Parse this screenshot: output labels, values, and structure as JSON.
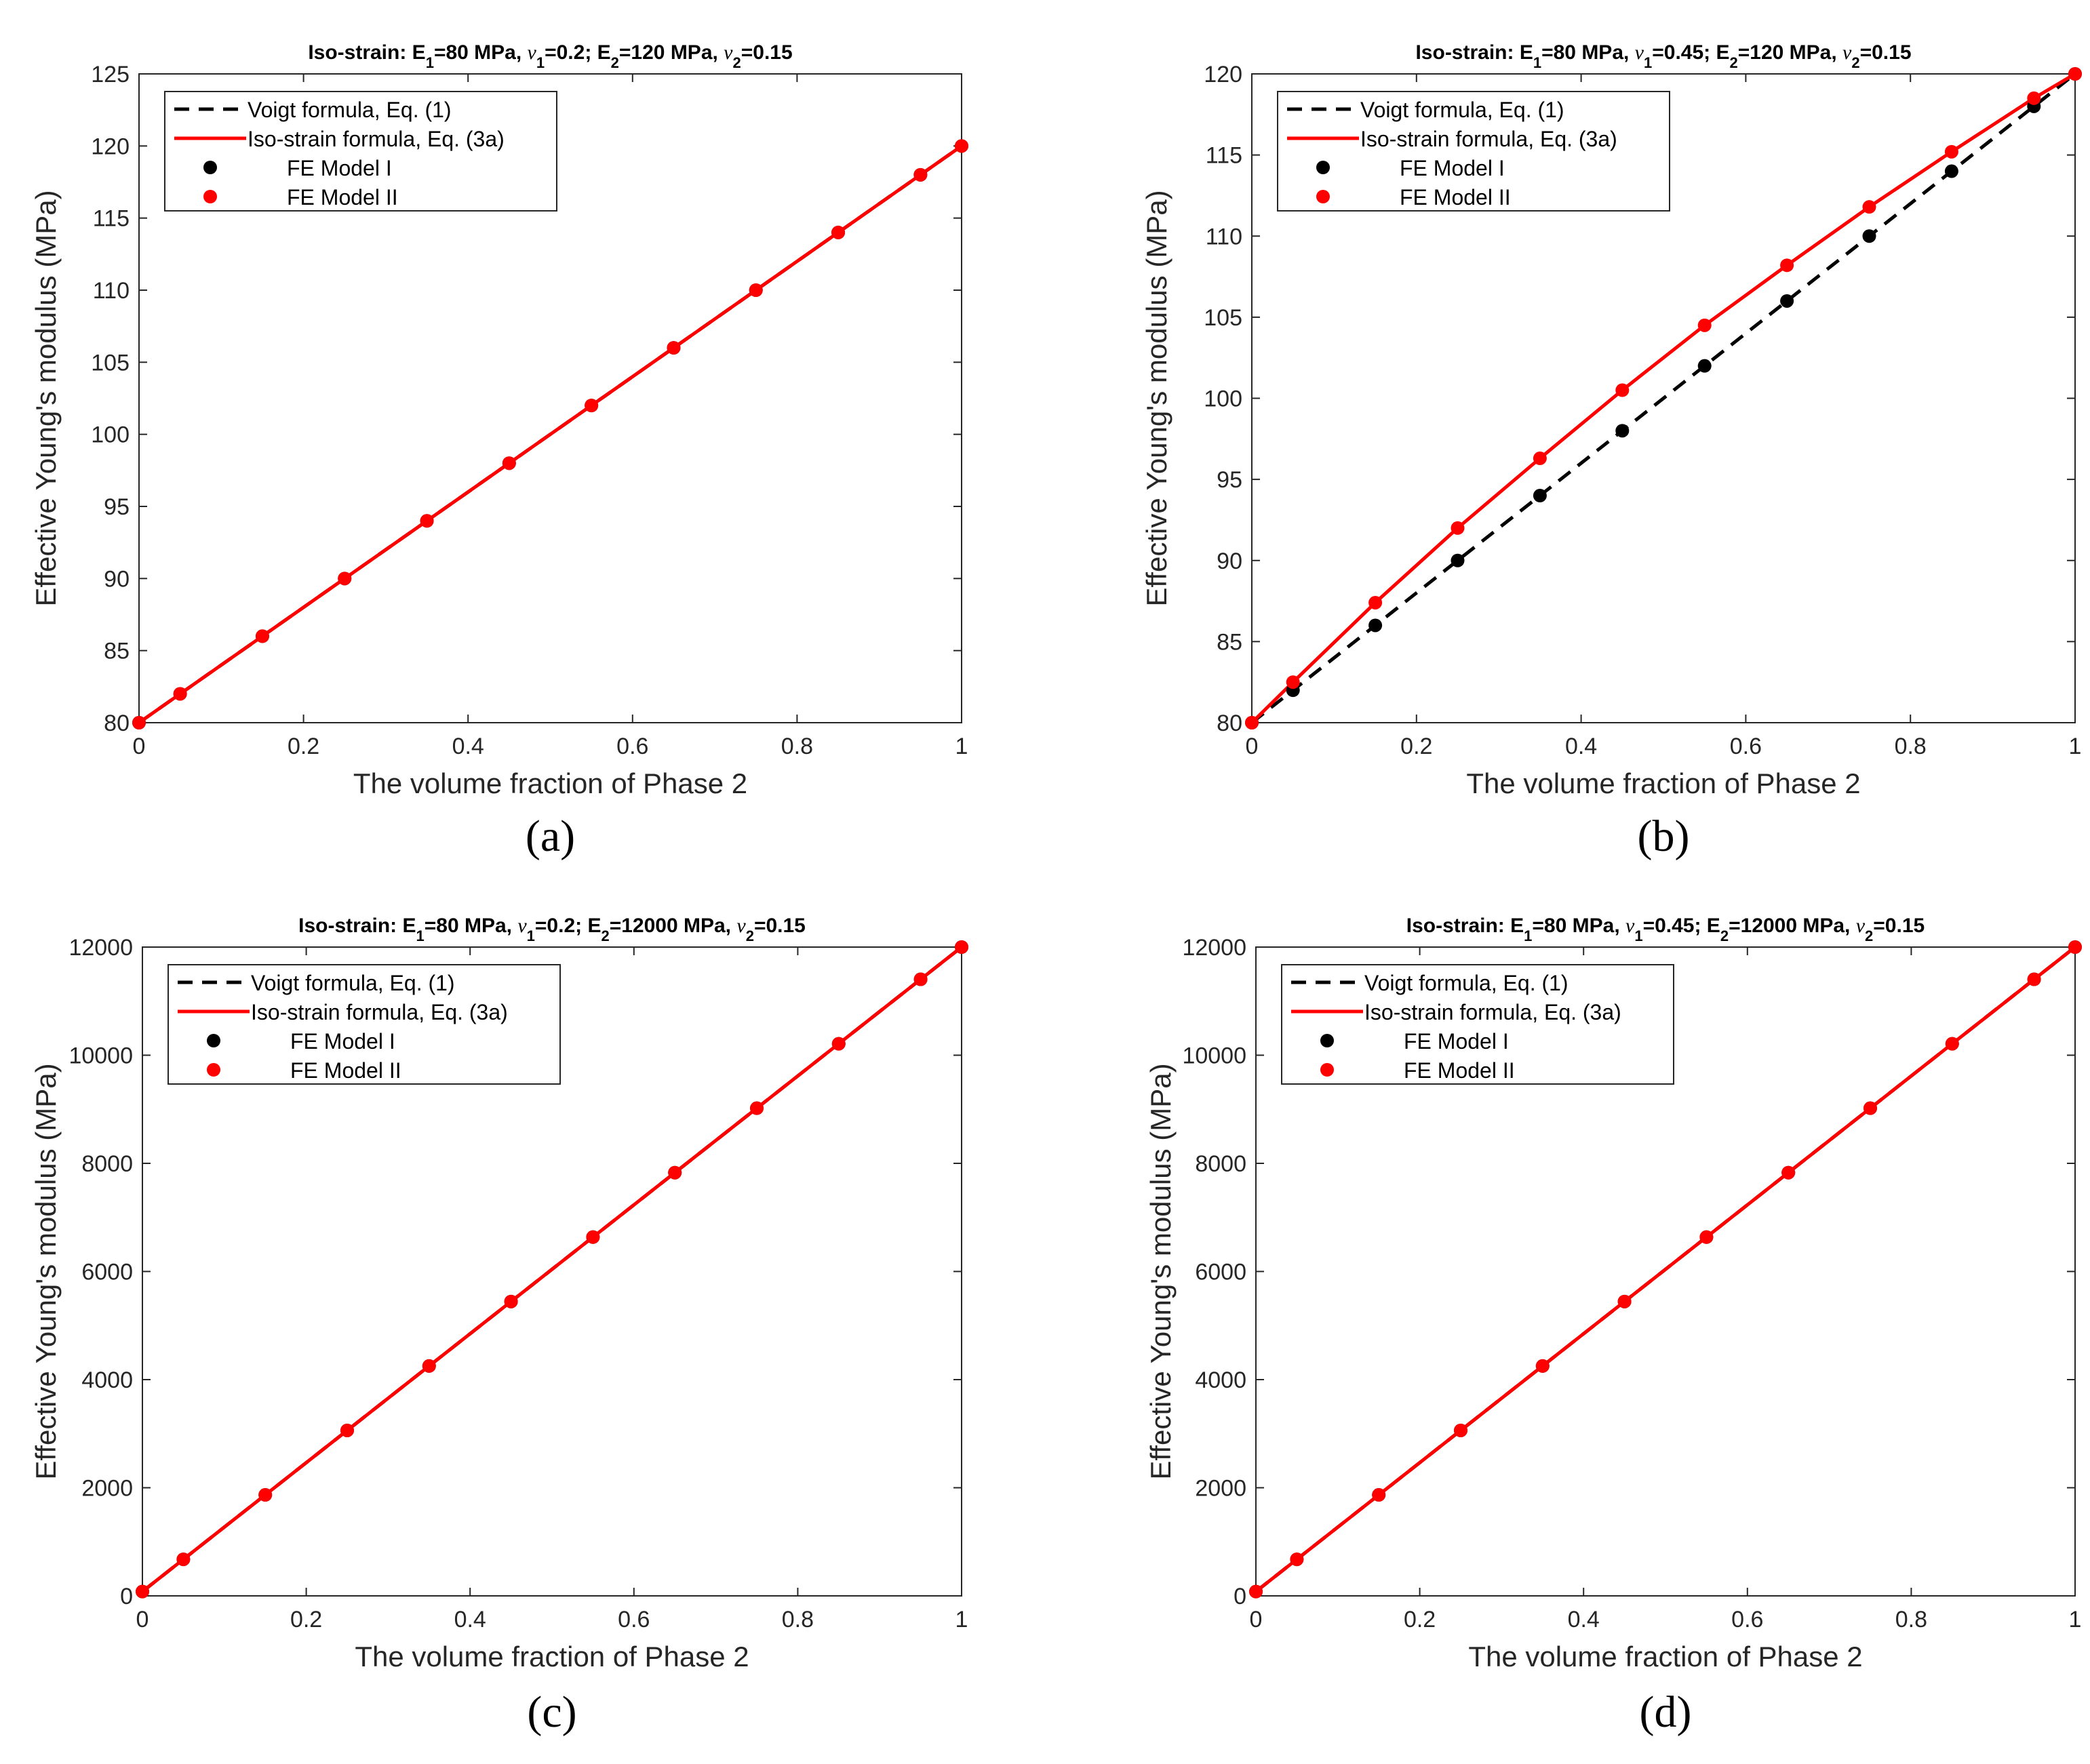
{
  "chart_data": [
    {
      "type": "line",
      "panel_label": "(a)",
      "title": {
        "prefix": "Iso-strain: E",
        "e1_sub": "1",
        "e1_val": "=80 MPa, ",
        "nu_symbol": "ν",
        "nu1_sub": "1",
        "nu1_val": "=0.2; E",
        "e2_sub": "2",
        "e2_val": "=120 MPa, ",
        "nu2_sub": "2",
        "nu2_val": "=0.15"
      },
      "xlabel": "The volume fraction of Phase 2",
      "ylabel": "Effective Young's modulus (MPa)",
      "xlim": [
        0,
        1
      ],
      "ylim": [
        80,
        125
      ],
      "xticks": [
        0,
        0.2,
        0.4,
        0.6,
        0.8,
        1
      ],
      "xtick_labels": [
        "0",
        "0.2",
        "0.4",
        "0.6",
        "0.8",
        "1"
      ],
      "yticks": [
        80,
        85,
        90,
        95,
        100,
        105,
        110,
        115,
        120,
        125
      ],
      "ytick_labels": [
        "80",
        "85",
        "90",
        "95",
        "100",
        "105",
        "110",
        "115",
        "120",
        "125"
      ],
      "legend": {
        "position": "top-left",
        "entries": [
          "Voigt formula, Eq. (1)",
          "Iso-strain formula, Eq. (3a)",
          "FE Model I",
          "FE Model II"
        ]
      },
      "series": [
        {
          "name": "Voigt formula, Eq. (1)",
          "style": "dashed-line",
          "color": "#000000",
          "x": [
            0,
            1
          ],
          "y": [
            80,
            120
          ]
        },
        {
          "name": "Iso-strain formula, Eq. (3a)",
          "style": "solid-line",
          "color": "#ff0000",
          "x": [
            0,
            0.05,
            0.15,
            0.25,
            0.35,
            0.45,
            0.55,
            0.65,
            0.75,
            0.85,
            0.95,
            1
          ],
          "y": [
            80,
            82,
            86,
            90,
            94,
            98,
            102,
            106,
            110,
            114,
            118,
            120
          ]
        },
        {
          "name": "FE Model I",
          "style": "markers",
          "color": "#000000",
          "x": [
            0,
            0.05,
            0.15,
            0.25,
            0.35,
            0.45,
            0.55,
            0.65,
            0.75,
            0.85,
            0.95,
            1
          ],
          "y": [
            80,
            82,
            86,
            90,
            94,
            98,
            102,
            106,
            110,
            114,
            118,
            120
          ]
        },
        {
          "name": "FE Model II",
          "style": "markers",
          "color": "#ff0000",
          "x": [
            0,
            0.05,
            0.15,
            0.25,
            0.35,
            0.45,
            0.55,
            0.65,
            0.75,
            0.85,
            0.95,
            1
          ],
          "y": [
            80,
            82,
            86,
            90,
            94,
            98,
            102,
            106,
            110,
            114,
            118,
            120
          ]
        }
      ]
    },
    {
      "type": "line",
      "panel_label": "(b)",
      "title": {
        "prefix": "Iso-strain: E",
        "e1_sub": "1",
        "e1_val": "=80 MPa, ",
        "nu_symbol": "ν",
        "nu1_sub": "1",
        "nu1_val": "=0.45; E",
        "e2_sub": "2",
        "e2_val": "=120 MPa, ",
        "nu2_sub": "2",
        "nu2_val": "=0.15"
      },
      "xlabel": "The volume fraction of Phase 2",
      "ylabel": "Effective Young's modulus (MPa)",
      "xlim": [
        0,
        1
      ],
      "ylim": [
        80,
        120
      ],
      "xticks": [
        0,
        0.2,
        0.4,
        0.6,
        0.8,
        1
      ],
      "xtick_labels": [
        "0",
        "0.2",
        "0.4",
        "0.6",
        "0.8",
        "1"
      ],
      "yticks": [
        80,
        85,
        90,
        95,
        100,
        105,
        110,
        115,
        120
      ],
      "ytick_labels": [
        "80",
        "85",
        "90",
        "95",
        "100",
        "105",
        "110",
        "115",
        "120"
      ],
      "legend": {
        "position": "top-left",
        "entries": [
          "Voigt formula, Eq. (1)",
          "Iso-strain formula, Eq. (3a)",
          "FE Model I",
          "FE Model II"
        ]
      },
      "series": [
        {
          "name": "Voigt formula, Eq. (1)",
          "style": "dashed-line",
          "color": "#000000",
          "x": [
            0,
            1
          ],
          "y": [
            80,
            120
          ]
        },
        {
          "name": "Iso-strain formula, Eq. (3a)",
          "style": "solid-line",
          "color": "#ff0000",
          "x": [
            0,
            0.05,
            0.15,
            0.25,
            0.35,
            0.45,
            0.55,
            0.65,
            0.75,
            0.85,
            0.95,
            1
          ],
          "y": [
            80,
            82.5,
            87.4,
            92,
            96.3,
            100.5,
            104.5,
            108.2,
            111.8,
            115.2,
            118.5,
            120
          ]
        },
        {
          "name": "FE Model I",
          "style": "markers",
          "color": "#000000",
          "x": [
            0,
            0.05,
            0.15,
            0.25,
            0.35,
            0.45,
            0.55,
            0.65,
            0.75,
            0.85,
            0.95,
            1
          ],
          "y": [
            80,
            82,
            86,
            90,
            94,
            98,
            102,
            106,
            110,
            114,
            118,
            120
          ]
        },
        {
          "name": "FE Model II",
          "style": "markers",
          "color": "#ff0000",
          "x": [
            0,
            0.05,
            0.15,
            0.25,
            0.35,
            0.45,
            0.55,
            0.65,
            0.75,
            0.85,
            0.95,
            1
          ],
          "y": [
            80,
            82.5,
            87.4,
            92,
            96.3,
            100.5,
            104.5,
            108.2,
            111.8,
            115.2,
            118.5,
            120
          ]
        }
      ]
    },
    {
      "type": "line",
      "panel_label": "(c)",
      "title": {
        "prefix": "Iso-strain: E",
        "e1_sub": "1",
        "e1_val": "=80 MPa, ",
        "nu_symbol": "ν",
        "nu1_sub": "1",
        "nu1_val": "=0.2; E",
        "e2_sub": "2",
        "e2_val": "=12000 MPa, ",
        "nu2_sub": "2",
        "nu2_val": "=0.15"
      },
      "xlabel": "The volume fraction of Phase 2",
      "ylabel": "Effective Young's modulus (MPa)",
      "xlim": [
        0,
        1
      ],
      "ylim": [
        0,
        12000
      ],
      "xticks": [
        0,
        0.2,
        0.4,
        0.6,
        0.8,
        1
      ],
      "xtick_labels": [
        "0",
        "0.2",
        "0.4",
        "0.6",
        "0.8",
        "1"
      ],
      "yticks": [
        0,
        2000,
        4000,
        6000,
        8000,
        10000,
        12000
      ],
      "ytick_labels": [
        "0",
        "2000",
        "4000",
        "6000",
        "8000",
        "10000",
        "12000"
      ],
      "legend": {
        "position": "top-left",
        "entries": [
          "Voigt formula, Eq. (1)",
          "Iso-strain formula, Eq. (3a)",
          "FE Model I",
          "FE Model II"
        ]
      },
      "series": [
        {
          "name": "Voigt formula, Eq. (1)",
          "style": "dashed-line",
          "color": "#000000",
          "x": [
            0,
            1
          ],
          "y": [
            80,
            12000
          ]
        },
        {
          "name": "Iso-strain formula, Eq. (3a)",
          "style": "solid-line",
          "color": "#ff0000",
          "x": [
            0,
            0.05,
            0.15,
            0.25,
            0.35,
            0.45,
            0.55,
            0.65,
            0.75,
            0.85,
            0.95,
            1
          ],
          "y": [
            80,
            676,
            1868,
            3060,
            4252,
            5444,
            6636,
            7828,
            9020,
            10212,
            11404,
            12000
          ]
        },
        {
          "name": "FE Model I",
          "style": "markers",
          "color": "#000000",
          "x": [
            0,
            0.05,
            0.15,
            0.25,
            0.35,
            0.45,
            0.55,
            0.65,
            0.75,
            0.85,
            0.95,
            1
          ],
          "y": [
            80,
            676,
            1868,
            3060,
            4252,
            5444,
            6636,
            7828,
            9020,
            10212,
            11404,
            12000
          ]
        },
        {
          "name": "FE Model II",
          "style": "markers",
          "color": "#ff0000",
          "x": [
            0,
            0.05,
            0.15,
            0.25,
            0.35,
            0.45,
            0.55,
            0.65,
            0.75,
            0.85,
            0.95,
            1
          ],
          "y": [
            80,
            676,
            1868,
            3060,
            4252,
            5444,
            6636,
            7828,
            9020,
            10212,
            11404,
            12000
          ]
        }
      ]
    },
    {
      "type": "line",
      "panel_label": "(d)",
      "title": {
        "prefix": "Iso-strain: E",
        "e1_sub": "1",
        "e1_val": "=80 MPa, ",
        "nu_symbol": "ν",
        "nu1_sub": "1",
        "nu1_val": "=0.45; E",
        "e2_sub": "2",
        "e2_val": "=12000 MPa, ",
        "nu2_sub": "2",
        "nu2_val": "=0.15"
      },
      "xlabel": "The volume fraction of Phase 2",
      "ylabel": "Effective Young's modulus (MPa)",
      "xlim": [
        0,
        1
      ],
      "ylim": [
        0,
        12000
      ],
      "xticks": [
        0,
        0.2,
        0.4,
        0.6,
        0.8,
        1
      ],
      "xtick_labels": [
        "0",
        "0.2",
        "0.4",
        "0.6",
        "0.8",
        "1"
      ],
      "yticks": [
        0,
        2000,
        4000,
        6000,
        8000,
        10000,
        12000
      ],
      "ytick_labels": [
        "0",
        "2000",
        "4000",
        "6000",
        "8000",
        "10000",
        "12000"
      ],
      "legend": {
        "position": "top-left",
        "entries": [
          "Voigt formula, Eq. (1)",
          "Iso-strain formula, Eq. (3a)",
          "FE Model I",
          "FE Model II"
        ]
      },
      "series": [
        {
          "name": "Voigt formula, Eq. (1)",
          "style": "dashed-line",
          "color": "#000000",
          "x": [
            0,
            1
          ],
          "y": [
            80,
            12000
          ]
        },
        {
          "name": "Iso-strain formula, Eq. (3a)",
          "style": "solid-line",
          "color": "#ff0000",
          "x": [
            0,
            0.05,
            0.15,
            0.25,
            0.35,
            0.45,
            0.55,
            0.65,
            0.75,
            0.85,
            0.95,
            1
          ],
          "y": [
            80,
            676,
            1868,
            3060,
            4252,
            5444,
            6636,
            7828,
            9020,
            10212,
            11404,
            12000
          ]
        },
        {
          "name": "FE Model I",
          "style": "markers",
          "color": "#000000",
          "x": [
            0,
            0.05,
            0.15,
            0.25,
            0.35,
            0.45,
            0.55,
            0.65,
            0.75,
            0.85,
            0.95,
            1
          ],
          "y": [
            80,
            676,
            1868,
            3060,
            4252,
            5444,
            6636,
            7828,
            9020,
            10212,
            11404,
            12000
          ]
        },
        {
          "name": "FE Model II",
          "style": "markers",
          "color": "#ff0000",
          "x": [
            0,
            0.05,
            0.15,
            0.25,
            0.35,
            0.45,
            0.55,
            0.65,
            0.75,
            0.85,
            0.95,
            1
          ],
          "y": [
            80,
            676,
            1868,
            3060,
            4252,
            5444,
            6636,
            7828,
            9020,
            10212,
            11404,
            12000
          ]
        }
      ]
    }
  ]
}
